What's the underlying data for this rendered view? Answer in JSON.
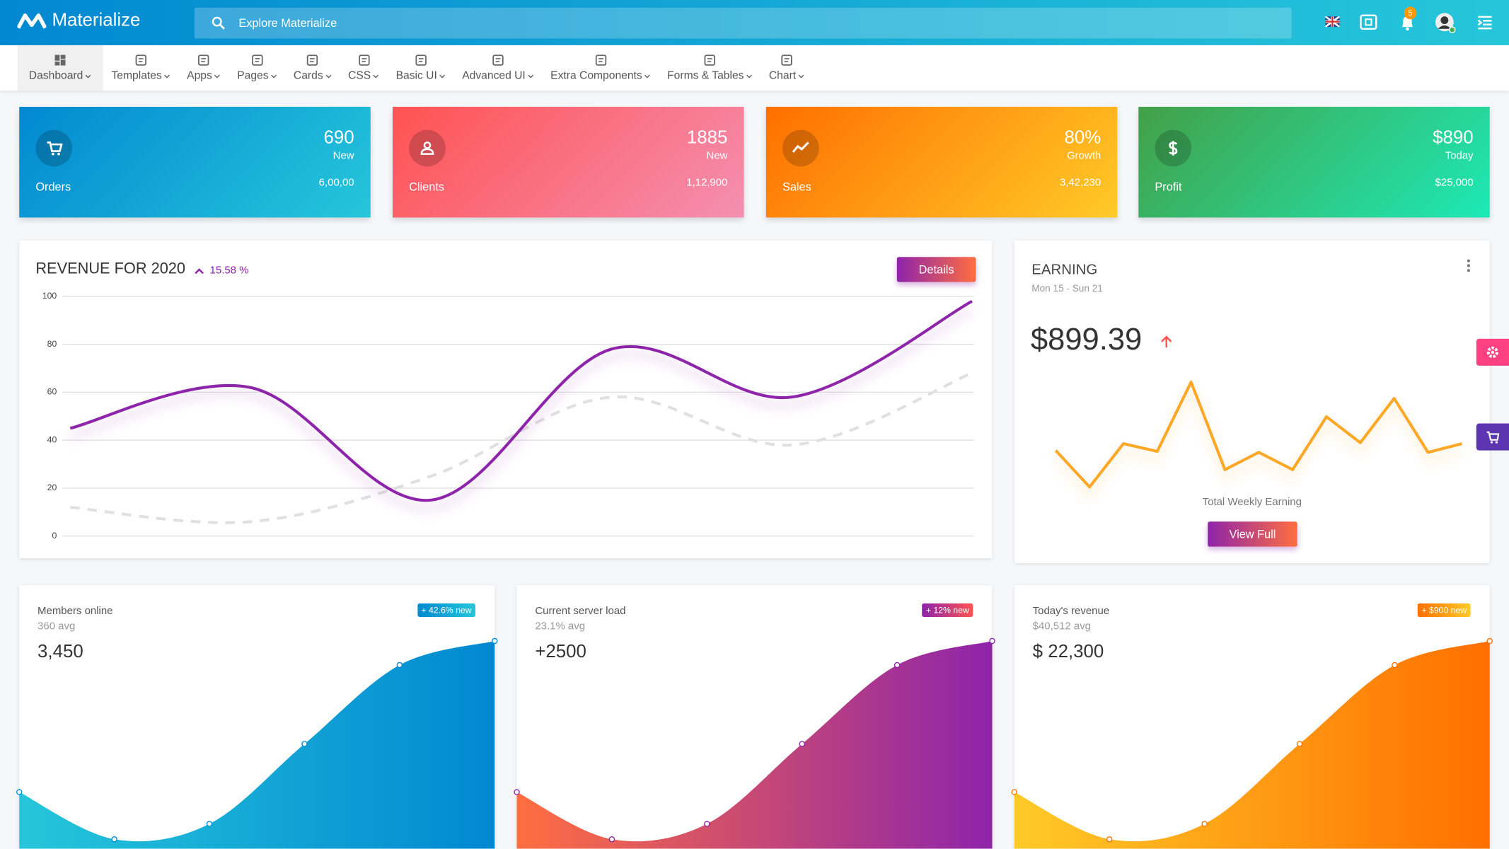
{
  "navbar": {
    "brand": "Materialize",
    "search_placeholder": "Explore Materialize",
    "notifications": "5"
  },
  "menu": [
    "Dashboard",
    "Templates",
    "Apps",
    "Pages",
    "Cards",
    "CSS",
    "Basic UI",
    "Advanced UI",
    "Extra Components",
    "Forms & Tables",
    "Chart"
  ],
  "stat_cards": [
    {
      "label": "Orders",
      "value": "690",
      "caption": "New",
      "total": "6,00,00"
    },
    {
      "label": "Clients",
      "value": "1885",
      "caption": "New",
      "total": "1,12,900"
    },
    {
      "label": "Sales",
      "value": "80%",
      "caption": "Growth",
      "total": "3,42,230"
    },
    {
      "label": "Profit",
      "value": "$890",
      "caption": "Today",
      "total": "$25,000"
    }
  ],
  "revenue": {
    "change": "15.58 %",
    "button": "Details"
  },
  "earning": {
    "title": "EARNING",
    "period": "Mon 15 - Sun 21",
    "amount": "$899.39",
    "footer": "Total Weekly Earning",
    "button": "View Full"
  },
  "stat_charts": [
    {
      "title": "Members online",
      "avg": "360 avg",
      "value": "3,450",
      "badge": "+ 42.6% new"
    },
    {
      "title": "Current server load",
      "avg": "23.1% avg",
      "value": "+2500",
      "badge": "+ 12% new"
    },
    {
      "title": "Today's revenue",
      "avg": "$40,512 avg",
      "value": "$ 22,300",
      "badge": "+ $900 new"
    }
  ],
  "chart_data": [
    {
      "type": "line",
      "title": "REVENUE FOR 2020",
      "categories": [
        null,
        null,
        null,
        null,
        null,
        null
      ],
      "ylim": [
        0,
        100
      ],
      "yticks": [
        0,
        20,
        40,
        60,
        80,
        100
      ],
      "grid": true,
      "series": [
        {
          "color": "#e0e0e0",
          "dashed": true,
          "values": [
            12,
            6,
            25,
            58,
            38,
            68
          ]
        },
        {
          "color": "#8e24aa",
          "dashed": false,
          "values": [
            45,
            62,
            15,
            78,
            58,
            98
          ]
        }
      ]
    },
    {
      "type": "line",
      "categories": [
        null,
        null,
        null,
        null,
        null,
        null,
        null,
        null,
        null,
        null,
        null,
        null,
        null
      ],
      "series": [
        {
          "color": "#ffa726",
          "dashed": false,
          "values": [
            42,
            4,
            49,
            41,
            113,
            22,
            40,
            22,
            77,
            50,
            96,
            40,
            49
          ]
        }
      ]
    },
    {
      "type": "area",
      "categories": [
        null,
        null,
        null,
        null,
        null,
        null
      ],
      "colors": [
        "#26c6da",
        "#0288d1"
      ],
      "values": [
        59,
        10,
        26,
        109,
        191,
        216
      ]
    },
    {
      "type": "area",
      "categories": [
        null,
        null,
        null,
        null,
        null,
        null
      ],
      "colors": [
        "#ff6e40",
        "#8e24aa"
      ],
      "values": [
        59,
        10,
        26,
        109,
        191,
        216
      ]
    },
    {
      "type": "area",
      "categories": [
        null,
        null,
        null,
        null,
        null,
        null
      ],
      "colors": [
        "#ffca28",
        "#ff6f00"
      ],
      "values": [
        59,
        10,
        26,
        109,
        191,
        216
      ]
    }
  ]
}
